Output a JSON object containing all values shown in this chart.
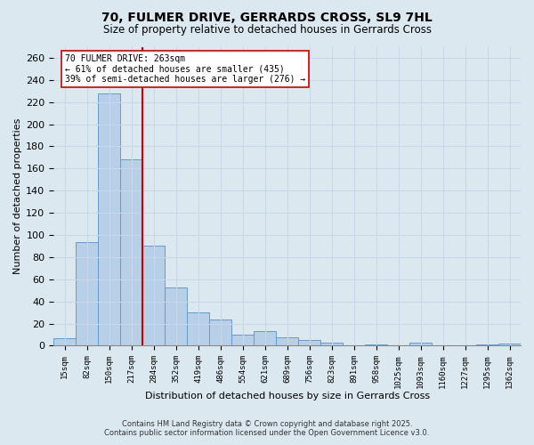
{
  "title_line1": "70, FULMER DRIVE, GERRARDS CROSS, SL9 7HL",
  "title_line2": "Size of property relative to detached houses in Gerrards Cross",
  "xlabel": "Distribution of detached houses by size in Gerrards Cross",
  "ylabel": "Number of detached properties",
  "bar_labels": [
    "15sqm",
    "82sqm",
    "150sqm",
    "217sqm",
    "284sqm",
    "352sqm",
    "419sqm",
    "486sqm",
    "554sqm",
    "621sqm",
    "689sqm",
    "756sqm",
    "823sqm",
    "891sqm",
    "958sqm",
    "1025sqm",
    "1093sqm",
    "1160sqm",
    "1227sqm",
    "1295sqm",
    "1362sqm"
  ],
  "bar_values": [
    7,
    94,
    228,
    168,
    90,
    53,
    30,
    24,
    10,
    13,
    8,
    5,
    3,
    0,
    1,
    0,
    3,
    0,
    0,
    1,
    2
  ],
  "bar_color": "#b8cfe8",
  "bar_edge_color": "#6699cc",
  "vline_color": "#cc0000",
  "annotation_text": "70 FULMER DRIVE: 263sqm\n← 61% of detached houses are smaller (435)\n39% of semi-detached houses are larger (276) →",
  "annotation_box_color": "#ffffff",
  "annotation_box_edge": "#cc0000",
  "ylim": [
    0,
    270
  ],
  "yticks": [
    0,
    20,
    40,
    60,
    80,
    100,
    120,
    140,
    160,
    180,
    200,
    220,
    240,
    260
  ],
  "grid_color": "#c8d8e8",
  "bg_color": "#dce8f0",
  "footer_line1": "Contains HM Land Registry data © Crown copyright and database right 2025.",
  "footer_line2": "Contains public sector information licensed under the Open Government Licence v3.0."
}
